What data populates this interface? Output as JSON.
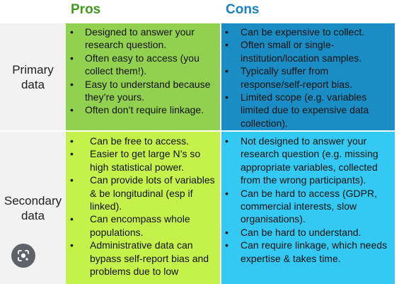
{
  "headers": {
    "pros": "Pros",
    "cons": "Cons"
  },
  "bullet": "•",
  "rows": [
    {
      "label": "Primary data",
      "pros": [
        "Designed to answer your research question.",
        "Often easy to access (you collect them!).",
        "Easy to understand because they’re yours.",
        "Often don’t require linkage."
      ],
      "cons": [
        "Can be expensive to collect.",
        "Often small or single-institution/location samples.",
        "Typically suffer from response/self-report bias.",
        "Limited scope (e.g. variables limited due to expensive data collection)."
      ]
    },
    {
      "label": "Secondary data",
      "pros": [
        "Can be free to access.",
        "Easier to get large N’s so high statistical power.",
        "Can provide lots of variables & be longitudinal (esp if linked).",
        "Can encompass whole populations.",
        "Administrative data can bypass self-report bias and problems due to low"
      ],
      "cons": [
        "Not designed to answer your research question (e.g. missing appropriate variables, collected from the wrong participants).",
        "Can be hard to access (GDPR, commercial interests, slow organisations).",
        "Can be hard to understand.",
        "Can require linkage, which needs expertise & takes time."
      ]
    }
  ],
  "colors": {
    "pros_header_text": "#3f9a1e",
    "cons_header_text": "#1c7fc2",
    "pros_primary_bg": "#92d050",
    "cons_primary_bg": "#1a8dc4",
    "pros_secondary_bg": "#c4f24b",
    "cons_secondary_bg": "#33c9f2",
    "label_bg": "#f2f2f2"
  },
  "overlay_icon": "lens-search-icon"
}
